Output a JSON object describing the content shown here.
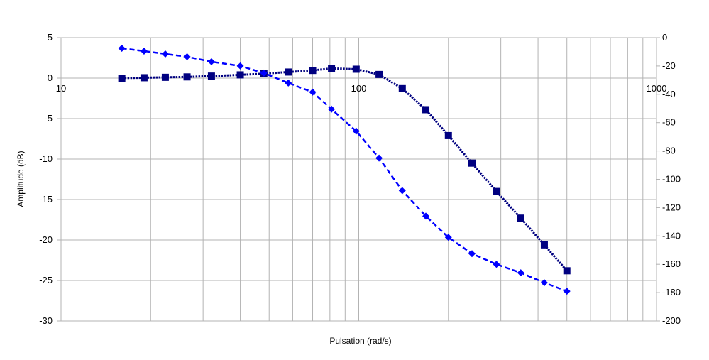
{
  "chart_data": {
    "type": "line",
    "xlabel": "Pulsation (rad/s)",
    "ylabel": "Amplitude (dB)",
    "xscale": "log",
    "xlim": [
      10,
      1000
    ],
    "ylim": [
      -30,
      5
    ],
    "y2lim": [
      -200,
      0
    ],
    "grid": true,
    "legend": "none",
    "x_tick_labels": [
      "10",
      "100",
      "1000"
    ],
    "y_tick_labels": [
      "5",
      "0",
      "-5",
      "-10",
      "-15",
      "-20",
      "-25",
      "-30"
    ],
    "y2_tick_labels": [
      "0",
      "-20",
      "-40",
      "-60",
      "-80",
      "-100",
      "-120",
      "-140",
      "-160",
      "-180",
      "-200"
    ],
    "series": [
      {
        "axis": "left",
        "marker": "square",
        "line_style": "dotted",
        "color": "#000080",
        "x": [
          16,
          19,
          22.4,
          26.5,
          32,
          40,
          48,
          58,
          70,
          81,
          98,
          117,
          140,
          168,
          200,
          240,
          290,
          350,
          420,
          500
        ],
        "y": [
          0.0,
          0.05,
          0.1,
          0.15,
          0.25,
          0.4,
          0.55,
          0.75,
          0.95,
          1.2,
          1.1,
          0.45,
          -1.3,
          -3.9,
          -7.1,
          -10.5,
          -14.0,
          -17.3,
          -20.6,
          -23.8
        ]
      },
      {
        "axis": "right",
        "marker": "diamond",
        "line_style": "dashed",
        "color": "#0000ff",
        "x": [
          16,
          19,
          22.4,
          26.5,
          32,
          40,
          48,
          58,
          70,
          81,
          98,
          117,
          140,
          168,
          200,
          240,
          290,
          350,
          420,
          500
        ],
        "y": [
          -7.5,
          -9.5,
          -11.5,
          -13.5,
          -17,
          -20,
          -25,
          -32,
          -38.5,
          -50.5,
          -66,
          -85,
          -108,
          -126,
          -141,
          -152.5,
          -160,
          -166,
          -173,
          -179
        ]
      }
    ]
  }
}
